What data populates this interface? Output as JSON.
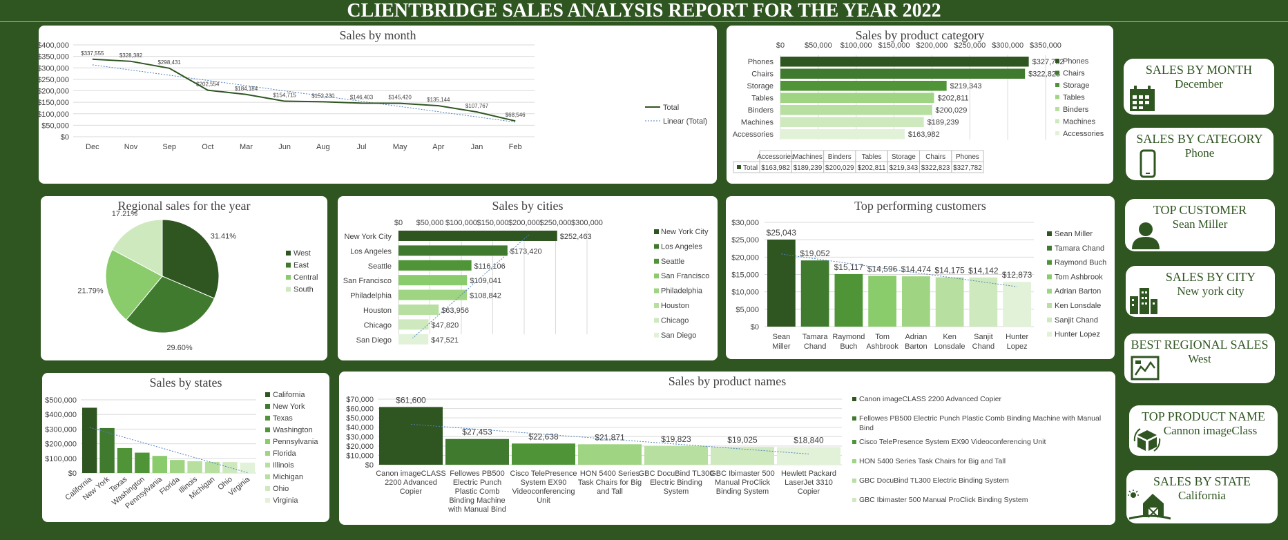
{
  "report": {
    "title": "CLIENTBRIDGE SALES ANALYSIS REPORT FOR THE YEAR  2022"
  },
  "palette": [
    "#2f5521",
    "#3f7a2e",
    "#4f9538",
    "#8acb6b",
    "#9fd483",
    "#b7df9f",
    "#cfe9bf",
    "#e2f2d8"
  ],
  "kpis": [
    {
      "title": "SALES BY MONTH",
      "value": "December",
      "icon": "calendar-icon"
    },
    {
      "title": "SALES BY CATEGORY",
      "value": "Phone",
      "icon": "phone-icon"
    },
    {
      "title": "TOP CUSTOMER",
      "value": "Sean Miller",
      "icon": "user-icon"
    },
    {
      "title": "SALES BY CITY",
      "value": "New york city",
      "icon": "city-icon"
    },
    {
      "title": "BEST REGIONAL SALES",
      "value": "West",
      "icon": "map-icon"
    },
    {
      "title": "TOP PRODUCT NAME",
      "value": "Cannon imageClass",
      "icon": "box-icon"
    },
    {
      "title": "SALES BY STATE",
      "value": "California",
      "icon": "barn-icon"
    }
  ],
  "chart_data": [
    {
      "id": "month",
      "type": "line",
      "title": "Sales by month",
      "categories": [
        "Dec",
        "Nov",
        "Sep",
        "Oct",
        "Mar",
        "Jun",
        "Aug",
        "Jul",
        "May",
        "Apr",
        "Jan",
        "Feb"
      ],
      "series": [
        {
          "name": "Total",
          "values": [
            337555,
            328382,
            298431,
            202554,
            184184,
            154715,
            152230,
            146403,
            145420,
            135144,
            107767,
            68546
          ]
        }
      ],
      "data_labels": [
        "$337,555",
        "$328,382",
        "$298,431",
        "$202,554",
        "$184,184",
        "$154,715",
        "$152,230",
        "$146,403",
        "$145,420",
        "$135,144",
        "$107,767",
        "$68,546"
      ],
      "trendline": {
        "name": "Linear (Total)"
      },
      "ylim": [
        0,
        400000
      ],
      "y_ticks": [
        "$0",
        "$50,000",
        "$100,000",
        "$150,000",
        "$200,000",
        "$250,000",
        "$300,000",
        "$350,000",
        "$400,000"
      ],
      "legend": "right",
      "grid": true
    },
    {
      "id": "category",
      "type": "bar",
      "title": "Sales by product category",
      "orientation": "horizontal",
      "categories": [
        "Phones",
        "Chairs",
        "Storage",
        "Tables",
        "Binders",
        "Machines",
        "Accessories"
      ],
      "values": [
        327782,
        322823,
        219343,
        202811,
        200029,
        189239,
        163982
      ],
      "data_labels": [
        "$327,782",
        "$322,823",
        "$219,343",
        "$202,811",
        "$200,029",
        "$189,239",
        "$163,982"
      ],
      "xlim": [
        0,
        350000
      ],
      "x_ticks": [
        "$0",
        "$50,000",
        "$100,000",
        "$150,000",
        "$200,000",
        "$250,000",
        "$300,000",
        "$350,000"
      ],
      "legend": "right",
      "table": {
        "headers": [
          "Accessories",
          "Machines",
          "Binders",
          "Tables",
          "Storage",
          "Chairs",
          "Phones"
        ],
        "row_label": "Total",
        "cells": [
          "$163,982",
          "$189,239",
          "$200,029",
          "$202,811",
          "$219,343",
          "$322,823",
          "$327,782"
        ]
      }
    },
    {
      "id": "region",
      "type": "pie",
      "title": "Regional sales for the year",
      "categories": [
        "West",
        "East",
        "Central",
        "South"
      ],
      "values": [
        31.41,
        29.6,
        21.79,
        17.21
      ],
      "data_labels": [
        "31.41%",
        "29.60%",
        "21.79%",
        "17.21%"
      ],
      "legend": "right"
    },
    {
      "id": "cities",
      "type": "bar",
      "title": "Sales by cities",
      "orientation": "horizontal",
      "categories": [
        "New York City",
        "Los Angeles",
        "Seattle",
        "San Francisco",
        "Philadelphia",
        "Houston",
        "Chicago",
        "San Diego"
      ],
      "values": [
        252463,
        173420,
        116106,
        109041,
        108842,
        63956,
        47820,
        47521
      ],
      "data_labels": [
        "$252,463",
        "$173,420",
        "$116,106",
        "$109,041",
        "$108,842",
        "$63,956",
        "$47,820",
        "$47,521"
      ],
      "xlim": [
        0,
        300000
      ],
      "x_ticks": [
        "$0",
        "$50,000",
        "$100,000",
        "$150,000",
        "$200,000",
        "$250,000",
        "$300,000"
      ],
      "legend": "right"
    },
    {
      "id": "customers",
      "type": "bar",
      "title": "Top performing customers",
      "categories": [
        "Sean Miller",
        "Tamara Chand",
        "Raymond Buch",
        "Tom Ashbrook",
        "Adrian Barton",
        "Ken Lonsdale",
        "Sanjit Chand",
        "Hunter Lopez"
      ],
      "values": [
        25043,
        19052,
        15117,
        14596,
        14474,
        14175,
        14142,
        12873
      ],
      "data_labels": [
        "$25,043",
        "$19,052",
        "$15,117",
        "$14,596",
        "$14,474",
        "$14,175",
        "$14,142",
        "$12,873"
      ],
      "ylim": [
        0,
        30000
      ],
      "y_ticks": [
        "$0",
        "$5,000",
        "$10,000",
        "$15,000",
        "$20,000",
        "$25,000",
        "$30,000"
      ],
      "legend": "right"
    },
    {
      "id": "states",
      "type": "bar",
      "title": "Sales by states",
      "categories": [
        "California",
        "New York",
        "Texas",
        "Washington",
        "Pennsylvania",
        "Florida",
        "Illinois",
        "Michigan",
        "Ohio",
        "Virginia"
      ],
      "values": [
        446000,
        307000,
        170000,
        139000,
        117000,
        89000,
        81000,
        76000,
        75000,
        71000
      ],
      "ylim": [
        0,
        500000
      ],
      "y_ticks": [
        "$0",
        "$100,000",
        "$200,000",
        "$300,000",
        "$400,000",
        "$500,000"
      ],
      "legend": "right"
    },
    {
      "id": "products",
      "type": "bar",
      "title": "Sales by product names",
      "categories": [
        "Canon imageCLASS 2200 Advanced Copier",
        "Fellowes PB500 Electric Punch Plastic Comb Binding Machine with Manual Bind",
        "Cisco TelePresence System EX90 Videoconferencing Unit",
        "HON 5400 Series Task Chairs for Big and Tall",
        "GBC DocuBind TL300 Electric Binding System",
        "GBC Ibimaster 500 Manual ProClick Binding System",
        "Hewlett Packard LaserJet 3310 Copier"
      ],
      "values": [
        61600,
        27453,
        22638,
        21871,
        19823,
        19025,
        18840
      ],
      "data_labels": [
        "$61,600",
        "$27,453",
        "$22,638",
        "$21,871",
        "$19,823",
        "$19,025",
        "$18,840"
      ],
      "ylim": [
        0,
        70000
      ],
      "y_ticks": [
        "$0",
        "$10,000",
        "$20,000",
        "$30,000",
        "$40,000",
        "$50,000",
        "$60,000",
        "$70,000"
      ],
      "legend_entries": [
        "Canon imageCLASS 2200 Advanced Copier",
        "Fellowes PB500 Electric Punch Plastic Comb Binding Machine with Manual Bind",
        "Cisco TelePresence System EX90 Videoconferencing Unit",
        "HON 5400 Series Task Chairs for Big and Tall",
        "GBC DocuBind TL300 Electric Binding System",
        "GBC Ibimaster 500 Manual ProClick Binding System"
      ],
      "legend": "right"
    }
  ]
}
